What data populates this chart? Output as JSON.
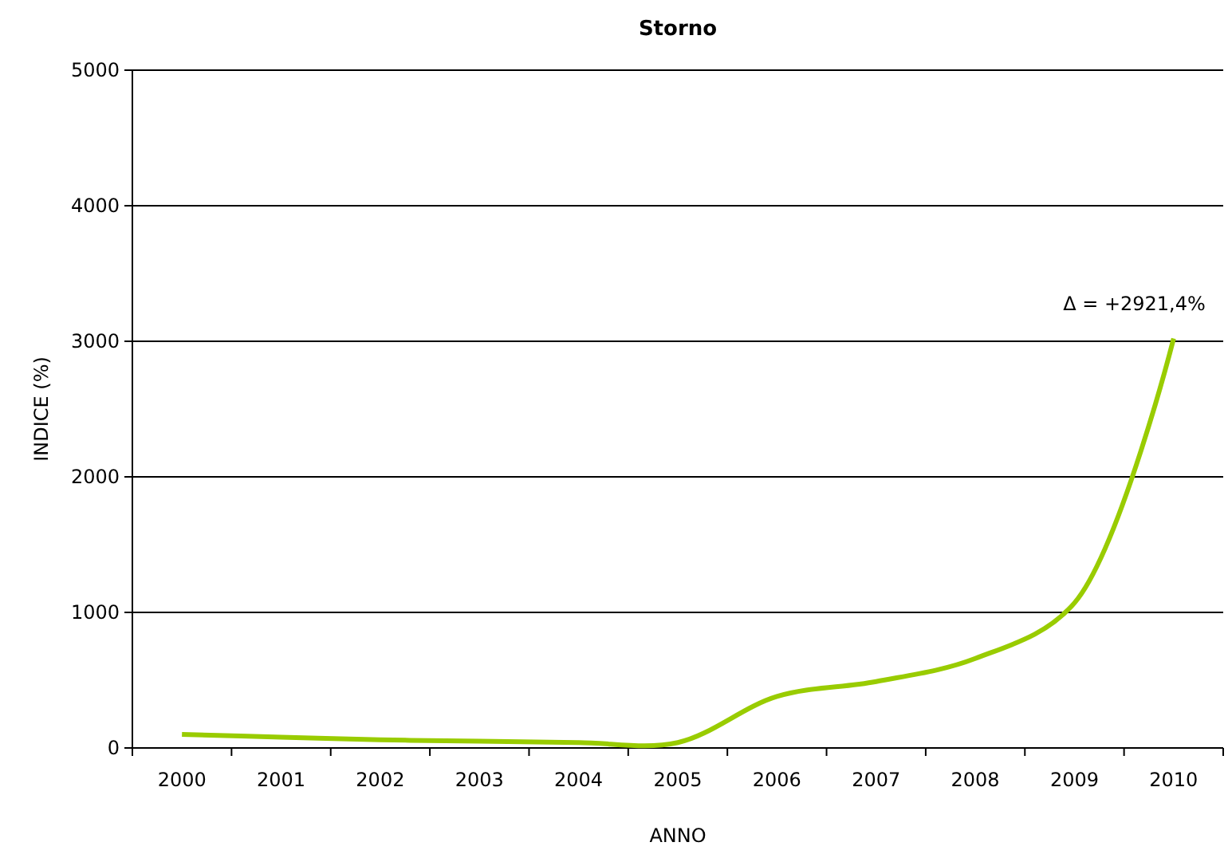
{
  "chart_data": {
    "type": "line",
    "title": "Storno",
    "xlabel": "ANNO",
    "ylabel": "INDICE (%)",
    "categories": [
      "2000",
      "2001",
      "2002",
      "2003",
      "2004",
      "2005",
      "2006",
      "2007",
      "2008",
      "2009",
      "2010"
    ],
    "series": [
      {
        "color": "#99cc00",
        "values": [
          100,
          80,
          60,
          50,
          40,
          40,
          380,
          490,
          660,
          1070,
          3020
        ]
      }
    ],
    "ylim": [
      0,
      5000
    ],
    "yticks": [
      0,
      1000,
      2000,
      3000,
      4000,
      5000
    ],
    "grid": "y",
    "annotations": [
      {
        "text": "Δ = +2921,4%",
        "x": "2010",
        "y": 3020
      }
    ]
  }
}
